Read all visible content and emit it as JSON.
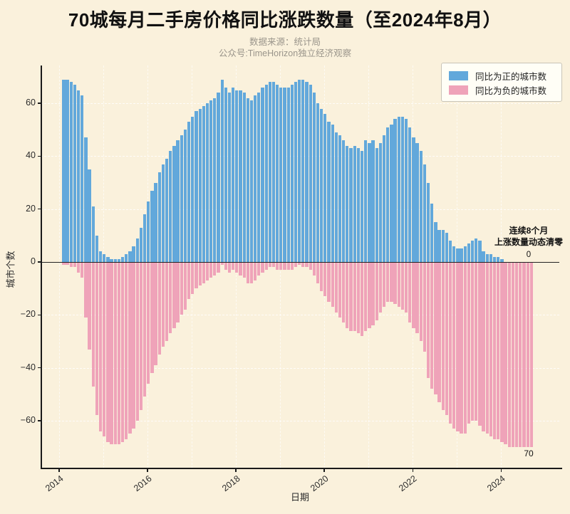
{
  "title": "70城每月二手房价格同比涨跌数量（至2024年8月）",
  "subtitle_line1": "数据来源：统计局",
  "subtitle_line2": "公众号:TimeHorizon独立经济观察",
  "legend": {
    "positive_label": "同比为正的城市数",
    "negative_label": "同比为负的城市数"
  },
  "annotation": {
    "line1": "连续8个月",
    "line2": "上涨数量动态清零",
    "zero_label": "0",
    "seventy_label": "70"
  },
  "colors": {
    "positive": "#62A8DB",
    "negative": "#EFA3B9",
    "background": "#FAF1DC"
  },
  "chart_data": {
    "type": "bar",
    "title": "70城每月二手房价格同比涨跌数量（至2024年8月）",
    "xlabel": "日期",
    "ylabel": "城市个数",
    "x_start": "2014-01",
    "x_end": "2024-08",
    "x_frequency": "monthly",
    "ylim": [
      -78,
      73
    ],
    "yticks": [
      60,
      40,
      20,
      0,
      -20,
      -40,
      -60
    ],
    "ytick_labels": [
      "60",
      "40",
      "20",
      "0",
      "−20",
      "−40",
      "−60"
    ],
    "xtick_years": [
      2014,
      2016,
      2018,
      2020,
      2022,
      2024
    ],
    "grid_years": [
      2014,
      2015,
      2016,
      2017,
      2018,
      2019,
      2020,
      2021,
      2022,
      2023,
      2024
    ],
    "legend_position": "upper right",
    "series": [
      {
        "name": "同比为正的城市数",
        "values": [
          69,
          69,
          68,
          67,
          65,
          63,
          47,
          35,
          21,
          10,
          4,
          3,
          2,
          1,
          1,
          1,
          2,
          3,
          4,
          6,
          9,
          13,
          18,
          23,
          27,
          30,
          34,
          37,
          39,
          42,
          44,
          46,
          48,
          50,
          53,
          55,
          57,
          58,
          59,
          60,
          61,
          62,
          64,
          69,
          66,
          64,
          66,
          65,
          65,
          64,
          62,
          61,
          63,
          64,
          66,
          67,
          68,
          68,
          67,
          66,
          66,
          66,
          67,
          68,
          69,
          69,
          68,
          67,
          64,
          60,
          58,
          56,
          53,
          52,
          49,
          48,
          46,
          44,
          43,
          44,
          43,
          42,
          46,
          45,
          46,
          43,
          45,
          48,
          51,
          52,
          54,
          55,
          55,
          54,
          51,
          47,
          45,
          42,
          37,
          30,
          22,
          15,
          12,
          12,
          11,
          8,
          6,
          5,
          5,
          6,
          7,
          8,
          9,
          8,
          4,
          3,
          3,
          2,
          2,
          1,
          0,
          0,
          0,
          0,
          0,
          0,
          0,
          0
        ]
      },
      {
        "name": "同比为负的城市数",
        "values": [
          -1,
          -1,
          -2,
          -2,
          -4,
          -6,
          -21,
          -33,
          -47,
          -58,
          -64,
          -66,
          -68,
          -69,
          -69,
          -69,
          -68,
          -67,
          -65,
          -63,
          -60,
          -56,
          -51,
          -46,
          -42,
          -39,
          -35,
          -32,
          -30,
          -27,
          -25,
          -23,
          -20,
          -18,
          -14,
          -12,
          -10,
          -9,
          -8,
          -7,
          -6,
          -5,
          -4,
          -1,
          -3,
          -4,
          -3,
          -4,
          -5,
          -6,
          -8,
          -8,
          -7,
          -5,
          -4,
          -3,
          -2,
          -2,
          -3,
          -3,
          -3,
          -3,
          -3,
          -2,
          -1,
          -2,
          -2,
          -3,
          -5,
          -8,
          -11,
          -13,
          -15,
          -17,
          -19,
          -21,
          -23,
          -25,
          -26,
          -26,
          -27,
          -28,
          -26,
          -25,
          -24,
          -22,
          -19,
          -17,
          -15,
          -15,
          -16,
          -17,
          -18,
          -19,
          -23,
          -25,
          -27,
          -30,
          -34,
          -44,
          -48,
          -50,
          -53,
          -56,
          -58,
          -61,
          -63,
          -64,
          -65,
          -65,
          -61,
          -60,
          -60,
          -62,
          -64,
          -65,
          -66,
          -67,
          -67,
          -68,
          -69,
          -70,
          -70,
          -70,
          -70,
          -70,
          -70,
          -70
        ]
      }
    ]
  }
}
